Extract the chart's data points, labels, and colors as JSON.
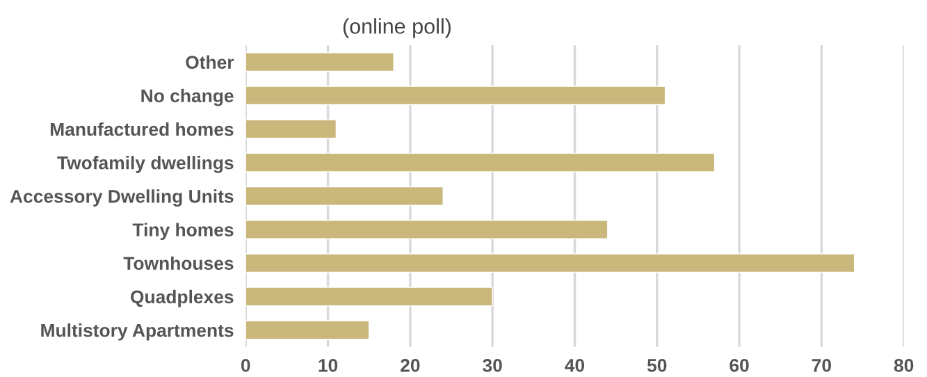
{
  "chart_data": {
    "type": "bar",
    "orientation": "horizontal",
    "title": "(online poll)",
    "categories": [
      "Other",
      "No change",
      "Manufactured homes",
      "Twofamily dwellings",
      "Accessory Dwelling Units",
      "Tiny homes",
      "Townhouses",
      "Quadplexes",
      "Multistory Apartments"
    ],
    "values": [
      18,
      51,
      11,
      57,
      24,
      44,
      74,
      30,
      15
    ],
    "color": "#c9b77b",
    "xlim": [
      0,
      80
    ],
    "xticks": [
      0,
      10,
      20,
      30,
      40,
      50,
      60,
      70,
      80
    ],
    "grid": "x"
  }
}
